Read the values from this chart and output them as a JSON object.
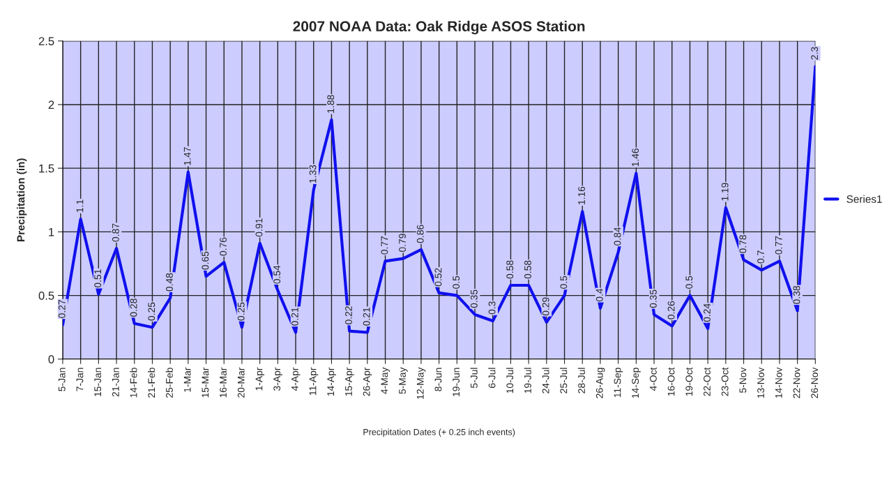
{
  "chart_data": {
    "type": "line",
    "title": "2007 NOAA Data: Oak Ridge ASOS Station",
    "xlabel": "Precipitation Dates (+ 0.25 inch events)",
    "ylabel": "Precipitation (in)",
    "categories": [
      "5-Jan",
      "7-Jan",
      "15-Jan",
      "21-Jan",
      "14-Feb",
      "21-Feb",
      "25-Feb",
      "1-Mar",
      "15-Mar",
      "16-Mar",
      "20-Mar",
      "1-Apr",
      "3-Apr",
      "4-Apr",
      "11-Apr",
      "14-Apr",
      "15-Apr",
      "26-Apr",
      "4-May",
      "5-May",
      "12-May",
      "8-Jun",
      "19-Jun",
      "5-Jul",
      "6-Jul",
      "10-Jul",
      "19-Jul",
      "24-Jul",
      "25-Jul",
      "28-Jul",
      "26-Aug",
      "11-Sep",
      "14-Sep",
      "4-Oct",
      "16-Oct",
      "19-Oct",
      "22-Oct",
      "23-Oct",
      "5-Nov",
      "13-Nov",
      "14-Nov",
      "22-Nov",
      "26-Nov"
    ],
    "series": [
      {
        "name": "Series1",
        "color": "#1010ee",
        "values": [
          0.27,
          1.1,
          0.51,
          0.87,
          0.28,
          0.25,
          0.48,
          1.47,
          0.65,
          0.76,
          0.25,
          0.91,
          0.54,
          0.21,
          1.33,
          1.88,
          0.22,
          0.21,
          0.77,
          0.79,
          0.86,
          0.52,
          0.5,
          0.35,
          0.3,
          0.58,
          0.58,
          0.29,
          0.5,
          1.16,
          0.4,
          0.84,
          1.46,
          0.35,
          0.26,
          0.5,
          0.24,
          1.19,
          0.78,
          0.7,
          0.77,
          0.38,
          2.3
        ]
      }
    ],
    "ylim": [
      0,
      2.5
    ],
    "yticks": [
      0,
      0.5,
      1,
      1.5,
      2,
      2.5
    ],
    "grid": true,
    "legend": "right",
    "data_labels": true,
    "marker": "none",
    "line_style": "solid"
  }
}
